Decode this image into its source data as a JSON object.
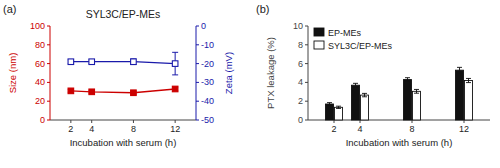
{
  "chart_data": [
    {
      "type": "line",
      "title": "SYL3C/EP-MEs",
      "annotations": [
        "(a)"
      ],
      "xlabel": "Incubation with serum (h)",
      "ylabel": "Size (nm)",
      "y2label": "Zeta (mV)",
      "x": [
        2,
        4,
        8,
        12
      ],
      "xlim": [
        0,
        14
      ],
      "xticks": [
        2,
        4,
        8,
        12
      ],
      "ylim": [
        0,
        100
      ],
      "yticks": [
        0,
        20,
        40,
        60,
        80,
        100
      ],
      "y2lim": [
        -50,
        0
      ],
      "y2ticks": [
        0,
        -10,
        -20,
        -30,
        -40,
        -50
      ],
      "grid": false,
      "series": [
        {
          "color": "#cc0000",
          "marker": "square",
          "values": [
            31,
            30,
            29,
            33
          ],
          "errors": [
            1.5,
            1.5,
            1.5,
            2.0
          ]
        },
        {
          "axis": "y2",
          "color": "#1a1aaa",
          "marker": "open-square",
          "values": [
            -19,
            -19,
            -19,
            -20
          ],
          "errors": [
            1.0,
            1.0,
            1.5,
            6.0
          ]
        }
      ]
    },
    {
      "type": "bar",
      "annotations": [
        "(b)"
      ],
      "xlabel": "Incubation with serum (h)",
      "ylabel": "PTX leakage (%)",
      "x": [
        2,
        4,
        8,
        12
      ],
      "xlim": [
        0,
        14
      ],
      "xticks": [
        2,
        4,
        8,
        12
      ],
      "ylim": [
        0,
        10
      ],
      "yticks": [
        0,
        2,
        4,
        6,
        8,
        10
      ],
      "grid": false,
      "legend": "upper left",
      "series": [
        {
          "name": "EP-MEs",
          "color": "#111111",
          "values": [
            1.7,
            3.7,
            4.3,
            5.3
          ],
          "errors": [
            0.15,
            0.2,
            0.2,
            0.3
          ]
        },
        {
          "name": "SYL3C/EP-MEs",
          "color": "#ffffff",
          "values": [
            1.35,
            2.65,
            3.05,
            4.2
          ],
          "errors": [
            0.12,
            0.18,
            0.2,
            0.22
          ]
        }
      ]
    }
  ]
}
